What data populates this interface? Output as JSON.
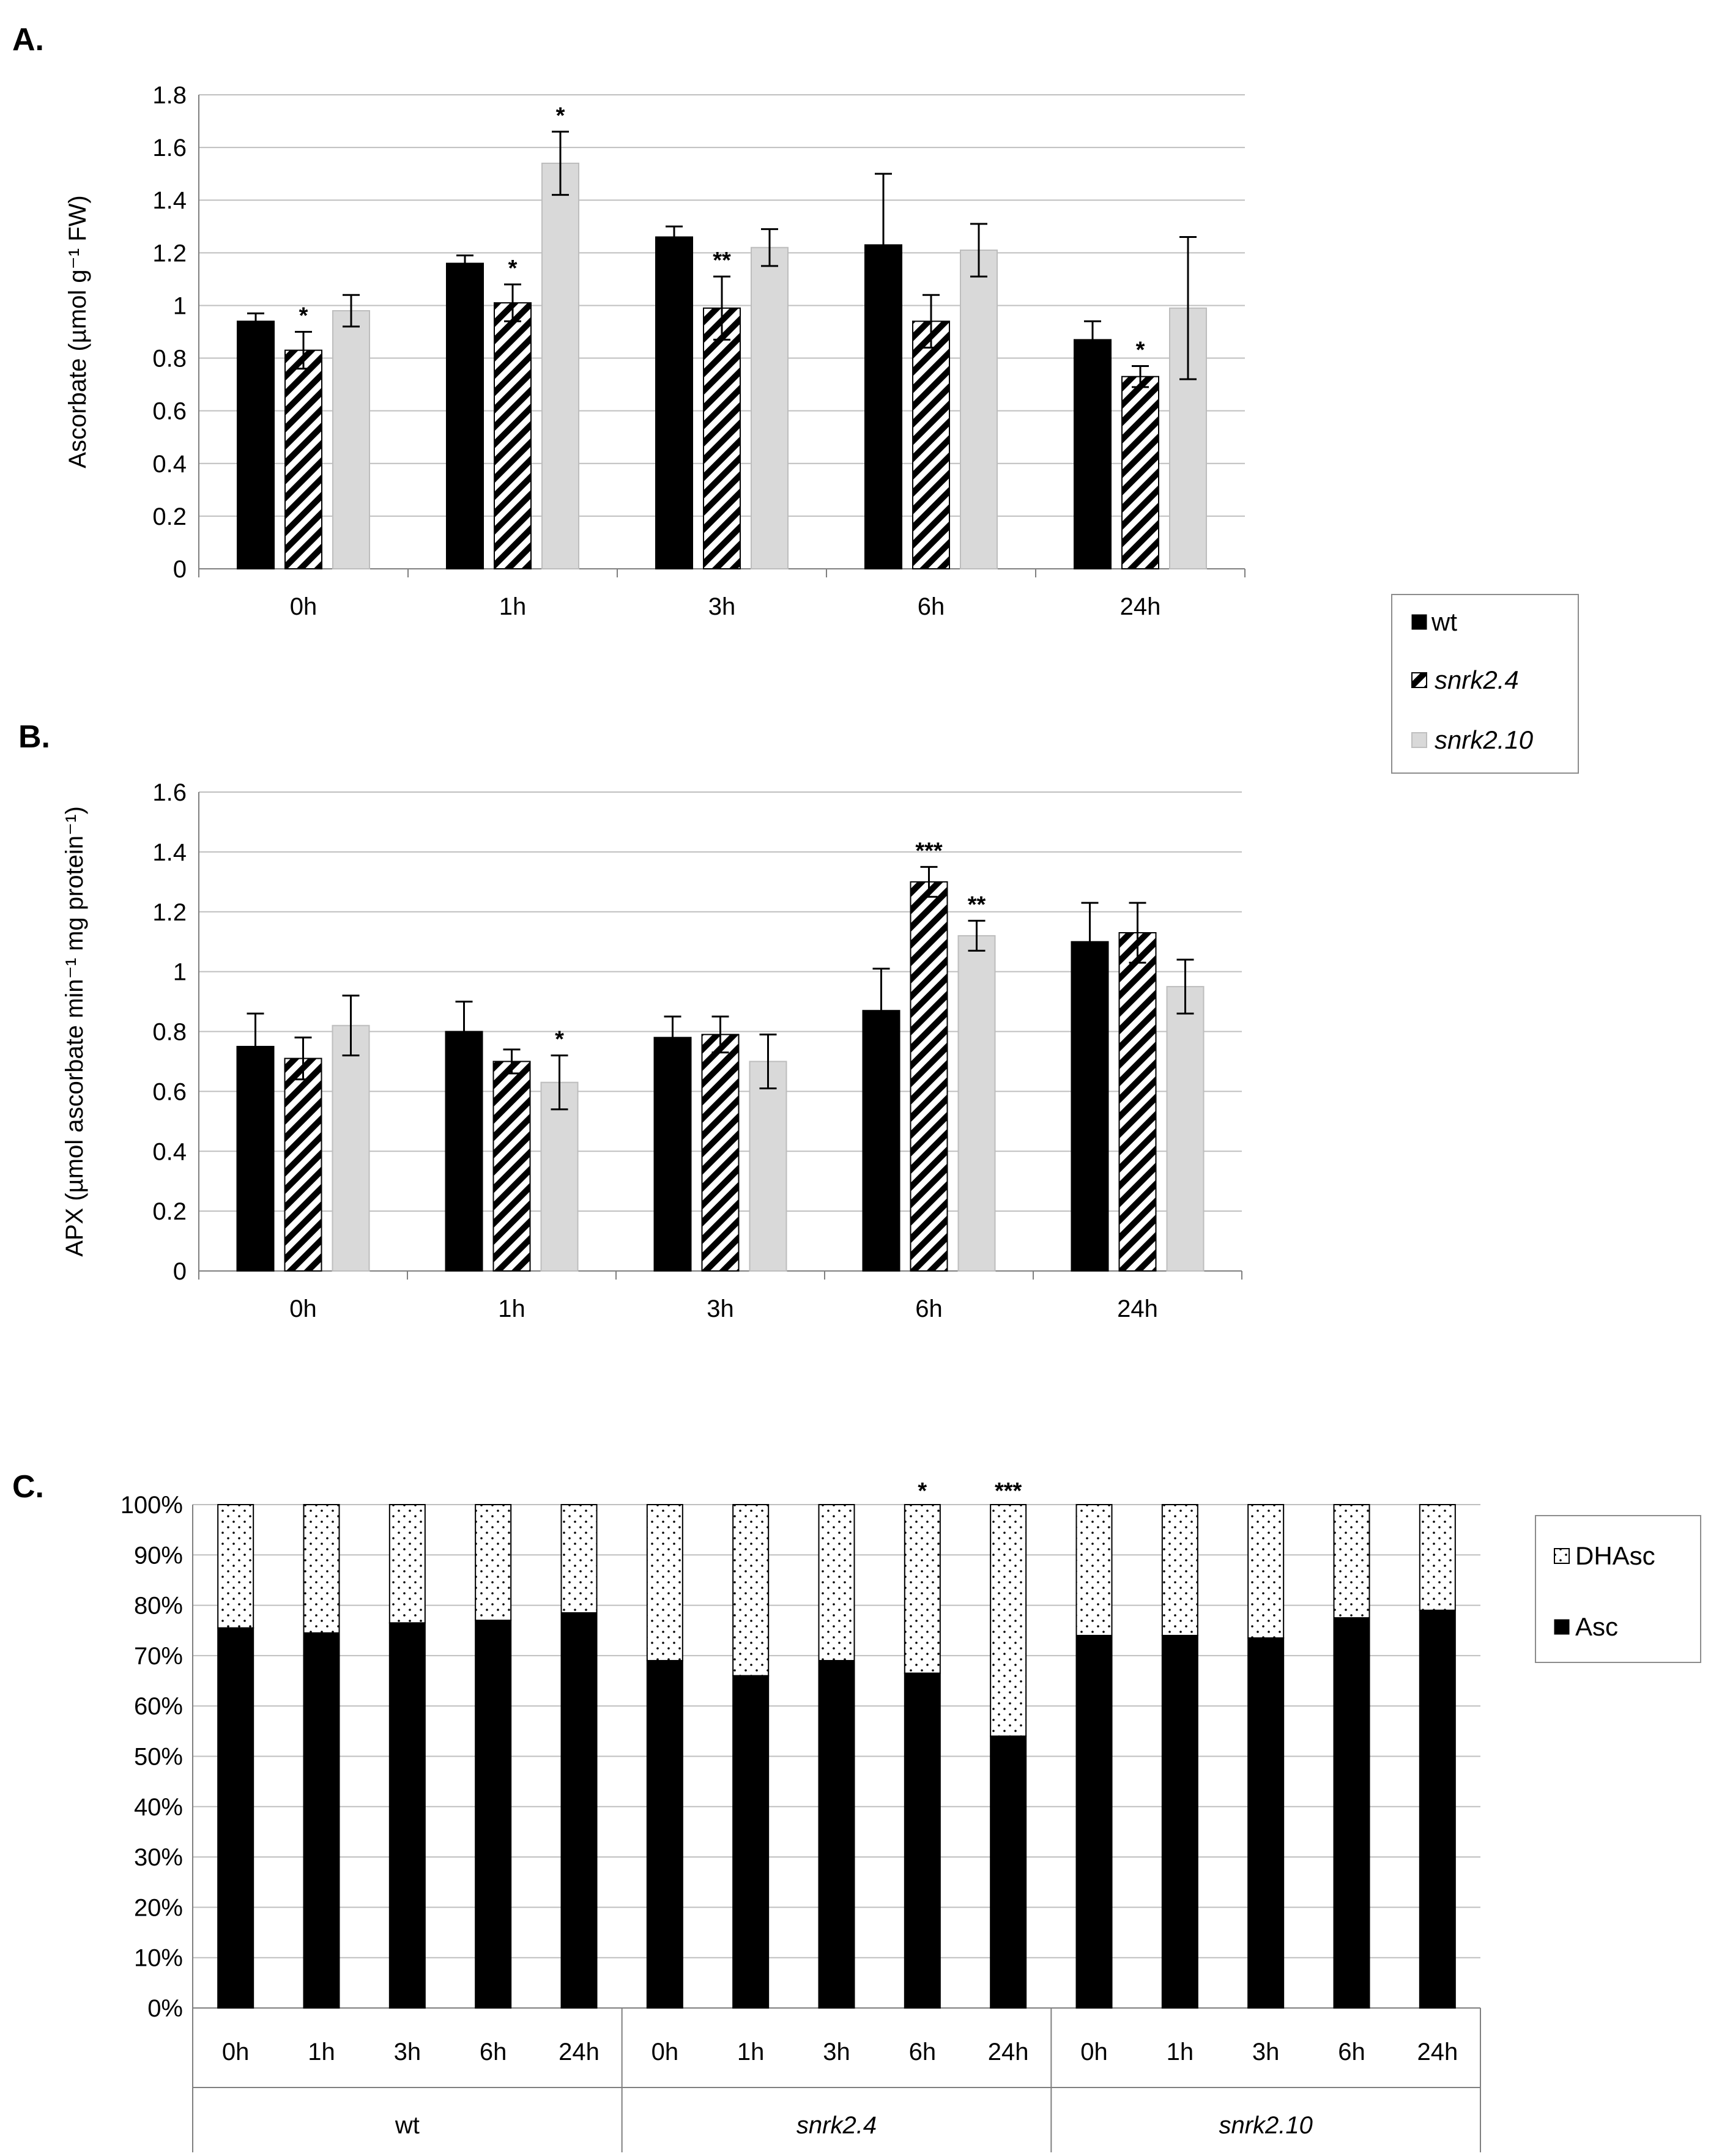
{
  "colors": {
    "wt": "#000000",
    "snrk24": "#ffffff",
    "snrk210": "#d9d9d9",
    "grid": "#bfbfbf",
    "axis": "#7f7f7f"
  },
  "legend": {
    "items": [
      {
        "label": "wt",
        "italic": false,
        "pattern": "solid"
      },
      {
        "label": "snrk2.4",
        "italic": true,
        "pattern": "stripes"
      },
      {
        "label": "snrk2.10",
        "italic": true,
        "pattern": "grey"
      }
    ]
  },
  "legend_c": {
    "items": [
      {
        "label": "DHAsc",
        "pattern": "dots"
      },
      {
        "label": "Asc",
        "pattern": "solid"
      }
    ]
  },
  "chart_data": [
    {
      "panel": "A.",
      "type": "bar",
      "ylabel": "Ascorbate (µmol g⁻¹ FW)",
      "ylim": [
        0,
        1.8
      ],
      "yticks": [
        "0",
        "0.2",
        "0.4",
        "0.6",
        "0.8",
        "1",
        "1.2",
        "1.4",
        "1.6",
        "1.8"
      ],
      "categories": [
        "0h",
        "1h",
        "3h",
        "6h",
        "24h"
      ],
      "series": [
        {
          "name": "wt",
          "values": [
            0.94,
            1.16,
            1.26,
            1.23,
            0.87
          ],
          "errors": [
            0.03,
            0.03,
            0.04,
            0.27,
            0.07
          ],
          "sig": [
            "",
            "",
            "",
            "",
            ""
          ]
        },
        {
          "name": "snrk2.4",
          "values": [
            0.83,
            1.01,
            0.99,
            0.94,
            0.73
          ],
          "errors": [
            0.07,
            0.07,
            0.12,
            0.1,
            0.04
          ],
          "sig": [
            "*",
            "*",
            "**",
            "",
            "*"
          ]
        },
        {
          "name": "snrk2.10",
          "values": [
            0.98,
            1.54,
            1.22,
            1.21,
            0.99
          ],
          "errors": [
            0.06,
            0.12,
            0.07,
            0.1,
            0.27
          ],
          "sig": [
            "",
            "*",
            "",
            "",
            ""
          ]
        }
      ]
    },
    {
      "panel": "B.",
      "type": "bar",
      "ylabel": "APX (µmol ascorbate min⁻¹ mg protein⁻¹)",
      "ylim": [
        0,
        1.6
      ],
      "yticks": [
        "0",
        "0.2",
        "0.4",
        "0.6",
        "0.8",
        "1",
        "1.2",
        "1.4",
        "1.6"
      ],
      "categories": [
        "0h",
        "1h",
        "3h",
        "6h",
        "24h"
      ],
      "series": [
        {
          "name": "wt",
          "values": [
            0.75,
            0.8,
            0.78,
            0.87,
            1.1
          ],
          "errors": [
            0.11,
            0.1,
            0.07,
            0.14,
            0.13
          ],
          "sig": [
            "",
            "",
            "",
            "",
            ""
          ]
        },
        {
          "name": "snrk2.4",
          "values": [
            0.71,
            0.7,
            0.79,
            1.3,
            1.13
          ],
          "errors": [
            0.07,
            0.04,
            0.06,
            0.05,
            0.1
          ],
          "sig": [
            "",
            "",
            "",
            "***",
            ""
          ]
        },
        {
          "name": "snrk2.10",
          "values": [
            0.82,
            0.63,
            0.7,
            1.12,
            0.95
          ],
          "errors": [
            0.1,
            0.09,
            0.09,
            0.05,
            0.09
          ],
          "sig": [
            "",
            "*",
            "",
            "**",
            ""
          ]
        }
      ]
    },
    {
      "panel": "C.",
      "type": "bar",
      "stacked": true,
      "ylim": [
        0,
        100
      ],
      "yticks": [
        "0%",
        "10%",
        "20%",
        "30%",
        "40%",
        "50%",
        "60%",
        "70%",
        "80%",
        "90%",
        "100%"
      ],
      "groups": [
        {
          "name": "wt",
          "italic": false,
          "categories": [
            "0h",
            "1h",
            "3h",
            "6h",
            "24h"
          ],
          "asc": [
            75.5,
            74.5,
            76.5,
            77,
            78.5
          ],
          "sig": [
            "",
            "",
            "",
            "",
            ""
          ]
        },
        {
          "name": "snrk2.4",
          "italic": true,
          "categories": [
            "0h",
            "1h",
            "3h",
            "6h",
            "24h"
          ],
          "asc": [
            69,
            66,
            69,
            66.5,
            54
          ],
          "sig": [
            "",
            "",
            "",
            "*",
            "***"
          ]
        },
        {
          "name": "snrk2.10",
          "italic": true,
          "categories": [
            "0h",
            "1h",
            "3h",
            "6h",
            "24h"
          ],
          "asc": [
            74,
            74,
            73.5,
            77.5,
            79
          ],
          "sig": [
            "",
            "",
            "",
            "",
            ""
          ]
        }
      ],
      "series": [
        {
          "name": "Asc"
        },
        {
          "name": "DHAsc"
        }
      ]
    }
  ]
}
